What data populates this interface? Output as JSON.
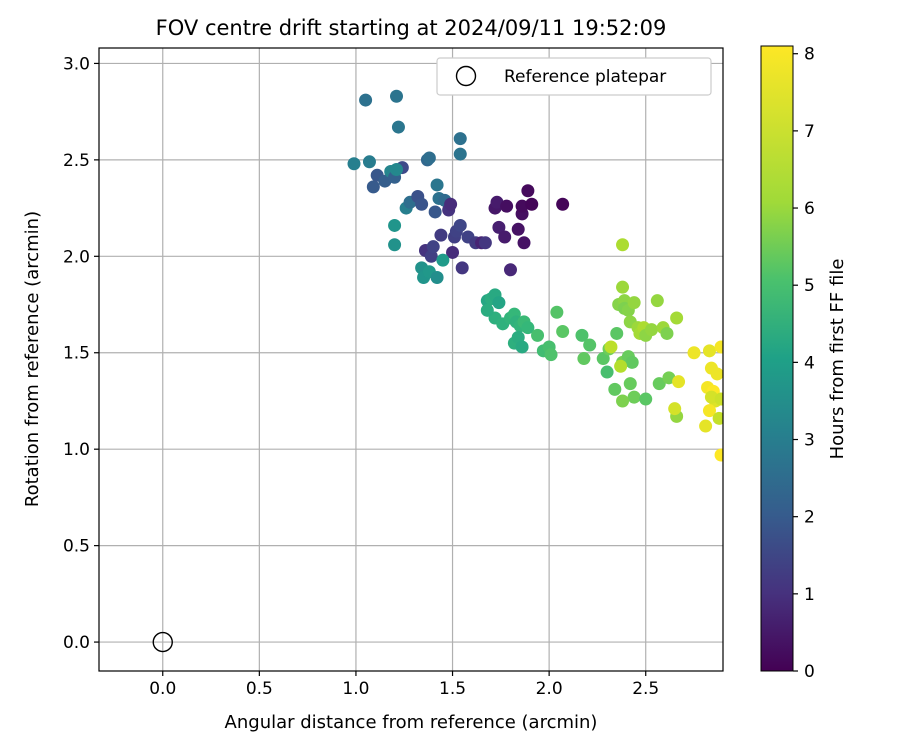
{
  "chart_data": {
    "type": "scatter",
    "title": "FOV centre drift starting at 2024/09/11 19:52:09",
    "xlabel": "Angular distance from reference (arcmin)",
    "ylabel": "Rotation from reference (arcmin)",
    "xlim": [
      -0.33,
      2.9
    ],
    "ylim": [
      -0.15,
      3.08
    ],
    "xticks": [
      "0.0",
      "0.5",
      "1.0",
      "1.5",
      "2.0",
      "2.5"
    ],
    "yticks": [
      "0.0",
      "0.5",
      "1.0",
      "1.5",
      "2.0",
      "2.5",
      "3.0"
    ],
    "grid": true,
    "legend": {
      "position": "top-right",
      "entries": [
        "Reference platepar"
      ]
    },
    "reference_point": {
      "x": 0.0,
      "y": 0.0
    },
    "colorbar": {
      "label": "Hours from first FF file",
      "ticks": [
        "0",
        "1",
        "2",
        "3",
        "4",
        "5",
        "6",
        "7",
        "8"
      ],
      "range": [
        0,
        8.1
      ],
      "colormap": "viridis"
    },
    "series": [
      {
        "points": [
          [
            1.05,
            2.81,
            3.0
          ],
          [
            1.21,
            2.83,
            3.1
          ],
          [
            1.22,
            2.67,
            3.2
          ],
          [
            0.99,
            2.48,
            3.5
          ],
          [
            1.07,
            2.49,
            3.4
          ],
          [
            1.54,
            2.61,
            3.0
          ],
          [
            1.54,
            2.53,
            3.1
          ],
          [
            1.09,
            2.36,
            2.3
          ],
          [
            1.11,
            2.42,
            2.2
          ],
          [
            1.15,
            2.39,
            2.4
          ],
          [
            1.18,
            2.44,
            3.7
          ],
          [
            1.2,
            2.41,
            2.5
          ],
          [
            1.24,
            2.46,
            1.8
          ],
          [
            1.21,
            2.45,
            3.8
          ],
          [
            1.26,
            2.25,
            3.5
          ],
          [
            1.28,
            2.28,
            2.9
          ],
          [
            1.32,
            2.31,
            2.0
          ],
          [
            1.34,
            2.27,
            2.1
          ],
          [
            1.37,
            2.5,
            2.7
          ],
          [
            1.38,
            2.51,
            2.9
          ],
          [
            1.41,
            2.23,
            2.2
          ],
          [
            1.42,
            2.37,
            3.2
          ],
          [
            1.43,
            2.3,
            3.0
          ],
          [
            1.44,
            2.11,
            1.4
          ],
          [
            1.46,
            2.29,
            2.8
          ],
          [
            1.48,
            2.24,
            1.2
          ],
          [
            1.49,
            2.27,
            1.0
          ],
          [
            1.51,
            2.1,
            1.5
          ],
          [
            1.52,
            2.13,
            1.6
          ],
          [
            1.54,
            2.16,
            1.7
          ],
          [
            1.5,
            2.02,
            1.0
          ],
          [
            1.55,
            1.94,
            1.3
          ],
          [
            1.58,
            2.1,
            1.6
          ],
          [
            1.62,
            2.07,
            1.4
          ],
          [
            1.65,
            2.07,
            0.8
          ],
          [
            1.67,
            2.07,
            1.3
          ],
          [
            1.72,
            2.25,
            0.5
          ],
          [
            1.73,
            2.28,
            0.6
          ],
          [
            1.74,
            2.15,
            0.7
          ],
          [
            1.77,
            2.1,
            0.6
          ],
          [
            1.78,
            2.26,
            0.3
          ],
          [
            1.8,
            1.93,
            0.9
          ],
          [
            1.84,
            2.14,
            0.4
          ],
          [
            1.86,
            2.22,
            0.3
          ],
          [
            1.86,
            2.26,
            0.2
          ],
          [
            1.87,
            2.07,
            0.4
          ],
          [
            1.89,
            2.34,
            0.2
          ],
          [
            1.91,
            2.27,
            0.1
          ],
          [
            2.07,
            2.27,
            0.1
          ],
          [
            1.36,
            2.03,
            1.2
          ],
          [
            1.39,
            2.0,
            1.5
          ],
          [
            1.4,
            2.05,
            1.6
          ],
          [
            1.34,
            1.94,
            4.1
          ],
          [
            1.35,
            1.89,
            4.2
          ],
          [
            1.38,
            1.92,
            4.3
          ],
          [
            1.42,
            1.89,
            4.0
          ],
          [
            1.45,
            1.98,
            4.4
          ],
          [
            1.2,
            2.16,
            4.2
          ],
          [
            1.2,
            2.06,
            4.1
          ],
          [
            1.68,
            1.77,
            4.8
          ],
          [
            1.7,
            1.78,
            5.0
          ],
          [
            1.72,
            1.8,
            4.9
          ],
          [
            1.74,
            1.76,
            4.7
          ],
          [
            1.72,
            1.68,
            5.1
          ],
          [
            1.68,
            1.72,
            5.0
          ],
          [
            1.76,
            1.65,
            5.2
          ],
          [
            1.8,
            1.68,
            5.3
          ],
          [
            1.82,
            1.7,
            5.4
          ],
          [
            1.83,
            1.66,
            5.2
          ],
          [
            1.85,
            1.64,
            5.3
          ],
          [
            1.87,
            1.66,
            5.5
          ],
          [
            1.89,
            1.63,
            5.4
          ],
          [
            1.82,
            1.55,
            5.1
          ],
          [
            1.84,
            1.58,
            5.0
          ],
          [
            1.86,
            1.53,
            4.9
          ],
          [
            1.94,
            1.59,
            5.7
          ],
          [
            1.97,
            1.51,
            5.6
          ],
          [
            2.0,
            1.53,
            5.7
          ],
          [
            2.01,
            1.49,
            5.8
          ],
          [
            2.04,
            1.71,
            5.9
          ],
          [
            2.07,
            1.61,
            6.0
          ],
          [
            2.17,
            1.59,
            5.8
          ],
          [
            2.21,
            1.54,
            5.9
          ],
          [
            2.18,
            1.47,
            6.1
          ],
          [
            2.28,
            1.47,
            6.0
          ],
          [
            2.31,
            1.52,
            6.3
          ],
          [
            2.3,
            1.4,
            5.7
          ],
          [
            2.35,
            1.6,
            6.0
          ],
          [
            2.34,
            1.31,
            6.1
          ],
          [
            2.38,
            1.45,
            6.4
          ],
          [
            2.41,
            1.48,
            6.2
          ],
          [
            2.43,
            1.45,
            6.1
          ],
          [
            2.44,
            1.27,
            6.3
          ],
          [
            2.42,
            1.34,
            6.2
          ],
          [
            2.38,
            1.25,
            6.5
          ],
          [
            2.5,
            1.26,
            6.0
          ],
          [
            2.57,
            1.34,
            6.2
          ],
          [
            2.62,
            1.37,
            6.4
          ],
          [
            2.36,
            1.75,
            6.6
          ],
          [
            2.39,
            1.77,
            6.7
          ],
          [
            2.38,
            1.84,
            6.9
          ],
          [
            2.39,
            1.73,
            6.5
          ],
          [
            2.41,
            1.72,
            6.6
          ],
          [
            2.42,
            1.66,
            6.7
          ],
          [
            2.44,
            1.76,
            6.8
          ],
          [
            2.46,
            1.63,
            6.9
          ],
          [
            2.47,
            1.6,
            7.0
          ],
          [
            2.49,
            1.63,
            7.1
          ],
          [
            2.5,
            1.59,
            6.7
          ],
          [
            2.53,
            1.62,
            6.8
          ],
          [
            2.56,
            1.77,
            6.8
          ],
          [
            2.59,
            1.63,
            6.9
          ],
          [
            2.61,
            1.6,
            6.5
          ],
          [
            2.66,
            1.68,
            7.0
          ],
          [
            2.38,
            2.06,
            7.1
          ],
          [
            2.32,
            1.53,
            7.3
          ],
          [
            2.37,
            1.43,
            7.2
          ],
          [
            2.66,
            1.17,
            6.8
          ],
          [
            2.65,
            1.21,
            7.6
          ],
          [
            2.67,
            1.35,
            7.8
          ],
          [
            2.75,
            1.5,
            7.9
          ],
          [
            2.82,
            1.32,
            8.0
          ],
          [
            2.83,
            1.51,
            7.8
          ],
          [
            2.84,
            1.42,
            7.9
          ],
          [
            2.85,
            1.3,
            8.1
          ],
          [
            2.86,
            1.25,
            7.7
          ],
          [
            2.87,
            1.39,
            7.9
          ],
          [
            2.83,
            1.2,
            8.0
          ],
          [
            2.84,
            1.27,
            7.6
          ],
          [
            2.81,
            1.12,
            7.8
          ],
          [
            2.88,
            1.16,
            7.4
          ],
          [
            2.89,
            1.26,
            7.5
          ],
          [
            2.89,
            1.53,
            8.0
          ],
          [
            2.89,
            0.97,
            8.1
          ]
        ]
      }
    ]
  }
}
